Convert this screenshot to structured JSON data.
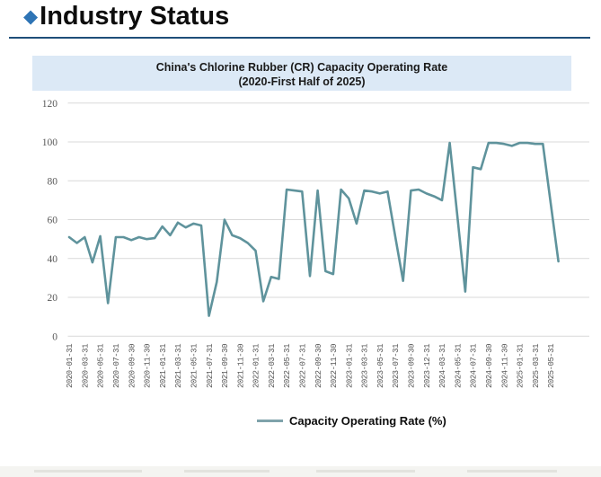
{
  "header": {
    "diamond_icon": "◆",
    "title": "Industry Status",
    "accent_color": "#2e74b5",
    "rule_color": "#1f4e79"
  },
  "chart_title": {
    "line1": "China's Chlorine Rubber (CR) Capacity Operating Rate",
    "line2": "(2020-First Half of 2025)",
    "banner_bg": "#dce9f6"
  },
  "legend": {
    "label": "Capacity Operating Rate (%)",
    "swatch_color": "#7fa3ab"
  },
  "chart_data": {
    "type": "line",
    "title": "China's Chlorine Rubber (CR) Capacity Operating Rate (2020-First Half of 2025)",
    "ylabel": "",
    "xlabel": "",
    "ylim": [
      0,
      120
    ],
    "y_ticks": [
      "0",
      "20",
      "40",
      "60",
      "80",
      "100",
      "120"
    ],
    "grid": "horizontal",
    "gridline_color": "#d9d9d9",
    "tick_text_color": "#595959",
    "legend_position": "bottom",
    "x_tick_labels": [
      "2020-01-31",
      "2020-03-31",
      "2020-05-31",
      "2020-07-31",
      "2020-09-30",
      "2020-11-30",
      "2021-01-31",
      "2021-03-31",
      "2021-05-31",
      "2021-07-31",
      "2021-09-30",
      "2021-11-30",
      "2022-01-31",
      "2022-03-31",
      "2022-05-31",
      "2022-07-31",
      "2022-09-30",
      "2022-11-30",
      "2023-01-31",
      "2023-03-31",
      "2023-05-31",
      "2023-07-31",
      "2023-09-30",
      "2023-12-31",
      "2024-03-31",
      "2024-05-31",
      "2024-07-31",
      "2024-09-30",
      "2024-11-30",
      "2025-01-31",
      "2025-03-31",
      "2025-05-31"
    ],
    "x_labels_every": 2,
    "series": [
      {
        "name": "Capacity Operating Rate (%)",
        "color": "#5f939c",
        "values": [
          51,
          48,
          51,
          38,
          51.5,
          17,
          51,
          51,
          49.5,
          51,
          50,
          50.5,
          56.5,
          52,
          58.5,
          56,
          58,
          57,
          10.5,
          28,
          60,
          52,
          50.5,
          48,
          44,
          18,
          30.5,
          29.5,
          75.5,
          75,
          74.5,
          31,
          75,
          33.5,
          32,
          75.5,
          71,
          58,
          75,
          74.5,
          73.5,
          74.5,
          51,
          28.5,
          75,
          75.5,
          73.5,
          72,
          70,
          99.5,
          61,
          23,
          87,
          86,
          99.5,
          99.5,
          99,
          98,
          99.5,
          99.5,
          99,
          99,
          68.5,
          38.5
        ]
      }
    ]
  }
}
